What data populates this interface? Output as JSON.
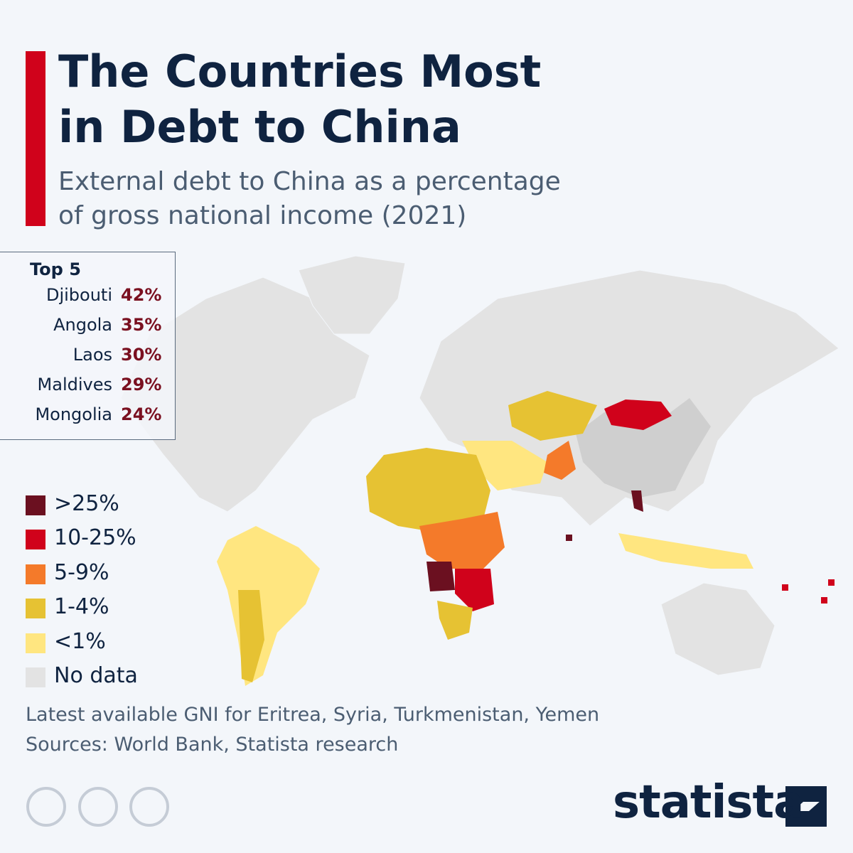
{
  "header": {
    "title_lines": [
      "The Countries Most",
      "in Debt to China"
    ],
    "subtitle_lines": [
      "External debt to China as a percentage",
      "of gross national income (2021)"
    ]
  },
  "top5": {
    "heading": "Top 5",
    "rows": [
      {
        "country": "Djibouti",
        "value": "42%"
      },
      {
        "country": "Angola",
        "value": "35%"
      },
      {
        "country": "Laos",
        "value": "30%"
      },
      {
        "country": "Maldives",
        "value": "29%"
      },
      {
        "country": "Mongolia",
        "value": "24%"
      }
    ]
  },
  "legend": [
    {
      "label": ">25%",
      "color": "#6b1020"
    },
    {
      "label": "10-25%",
      "color": "#d0021b"
    },
    {
      "label": "5-9%",
      "color": "#f47a2a"
    },
    {
      "label": "1-4%",
      "color": "#e6c233"
    },
    {
      "label": "<1%",
      "color": "#ffe680"
    },
    {
      "label": "No data",
      "color": "#e3e3e3"
    }
  ],
  "footer": {
    "note": "Latest available GNI for Eritrea, Syria, Turkmenistan, Yemen",
    "sources": "Sources: World Bank, Statista research",
    "brand": "statista"
  }
}
